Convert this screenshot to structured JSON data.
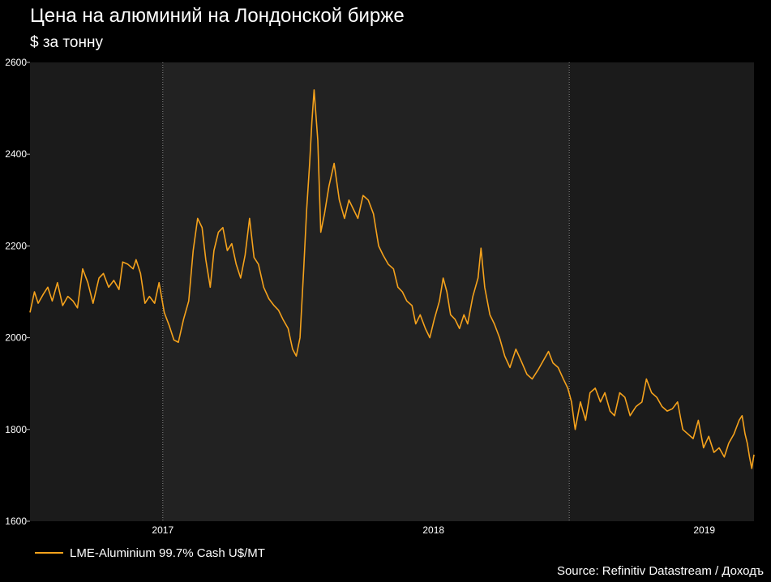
{
  "chart_data": {
    "type": "line",
    "title": "Цена на алюминий на Лондонской бирже",
    "subtitle": "$ за тонну",
    "source": "Source: Refinitiv Datastream / Доходъ",
    "ylim": [
      1600,
      2600
    ],
    "yticks": [
      "2600",
      "2400",
      "2200",
      "2000",
      "1800",
      "1600"
    ],
    "ytick_values": [
      2600,
      2400,
      2200,
      2000,
      1800,
      1600
    ],
    "xlim": [
      "2016-10-04",
      "2019-06-07"
    ],
    "xticks": [
      {
        "label": "2017",
        "date": "2017-04-01"
      },
      {
        "label": "2018",
        "date": "2018-04-01"
      },
      {
        "label": "2019",
        "date": "2019-04-01"
      }
    ],
    "period_boundaries": [
      "2017-04-01",
      "2018-10-01"
    ],
    "grid": false,
    "legend_position": "bottom-left",
    "colors": {
      "background": "#000000",
      "plot_shaded": "#1b1b1b",
      "plot_light": "#222222",
      "line": "#f5a21c",
      "text": "#ffffff"
    },
    "series": [
      {
        "name": "LME-Aluminium 99.7% Cash U$/MT",
        "color": "#f5a21c",
        "points": [
          [
            "2016-10-04",
            2055
          ],
          [
            "2016-10-10",
            2100
          ],
          [
            "2016-10-15",
            2075
          ],
          [
            "2016-10-22",
            2095
          ],
          [
            "2016-10-28",
            2110
          ],
          [
            "2016-11-03",
            2080
          ],
          [
            "2016-11-10",
            2120
          ],
          [
            "2016-11-17",
            2070
          ],
          [
            "2016-11-24",
            2090
          ],
          [
            "2016-12-01",
            2080
          ],
          [
            "2016-12-07",
            2065
          ],
          [
            "2016-12-14",
            2150
          ],
          [
            "2016-12-21",
            2120
          ],
          [
            "2016-12-28",
            2075
          ],
          [
            "2017-01-05",
            2130
          ],
          [
            "2017-01-11",
            2140
          ],
          [
            "2017-01-18",
            2110
          ],
          [
            "2017-01-25",
            2125
          ],
          [
            "2017-02-01",
            2105
          ],
          [
            "2017-02-06",
            2165
          ],
          [
            "2017-02-13",
            2160
          ],
          [
            "2017-02-20",
            2150
          ],
          [
            "2017-02-24",
            2170
          ],
          [
            "2017-03-02",
            2140
          ],
          [
            "2017-03-08",
            2075
          ],
          [
            "2017-03-14",
            2090
          ],
          [
            "2017-03-21",
            2075
          ],
          [
            "2017-03-27",
            2120
          ],
          [
            "2017-04-03",
            2055
          ],
          [
            "2017-04-10",
            2025
          ],
          [
            "2017-04-16",
            1995
          ],
          [
            "2017-04-22",
            1990
          ],
          [
            "2017-04-29",
            2040
          ],
          [
            "2017-05-06",
            2080
          ],
          [
            "2017-05-12",
            2190
          ],
          [
            "2017-05-18",
            2260
          ],
          [
            "2017-05-24",
            2240
          ],
          [
            "2017-05-29",
            2170
          ],
          [
            "2017-06-04",
            2110
          ],
          [
            "2017-06-09",
            2190
          ],
          [
            "2017-06-15",
            2230
          ],
          [
            "2017-06-21",
            2240
          ],
          [
            "2017-06-27",
            2190
          ],
          [
            "2017-07-03",
            2205
          ],
          [
            "2017-07-09",
            2160
          ],
          [
            "2017-07-15",
            2130
          ],
          [
            "2017-07-21",
            2180
          ],
          [
            "2017-07-27",
            2260
          ],
          [
            "2017-08-02",
            2175
          ],
          [
            "2017-08-08",
            2160
          ],
          [
            "2017-08-15",
            2110
          ],
          [
            "2017-08-22",
            2085
          ],
          [
            "2017-08-29",
            2070
          ],
          [
            "2017-09-04",
            2060
          ],
          [
            "2017-09-10",
            2040
          ],
          [
            "2017-09-17",
            2020
          ],
          [
            "2017-09-23",
            1975
          ],
          [
            "2017-09-28",
            1960
          ],
          [
            "2017-10-03",
            2000
          ],
          [
            "2017-10-08",
            2150
          ],
          [
            "2017-10-12",
            2280
          ],
          [
            "2017-10-16",
            2380
          ],
          [
            "2017-10-19",
            2470
          ],
          [
            "2017-10-22",
            2540
          ],
          [
            "2017-10-27",
            2430
          ],
          [
            "2017-10-31",
            2230
          ],
          [
            "2017-11-05",
            2270
          ],
          [
            "2017-11-11",
            2330
          ],
          [
            "2017-11-18",
            2380
          ],
          [
            "2017-11-25",
            2300
          ],
          [
            "2017-12-02",
            2260
          ],
          [
            "2017-12-08",
            2300
          ],
          [
            "2017-12-14",
            2280
          ],
          [
            "2017-12-20",
            2260
          ],
          [
            "2017-12-27",
            2310
          ],
          [
            "2018-01-03",
            2300
          ],
          [
            "2018-01-10",
            2270
          ],
          [
            "2018-01-17",
            2200
          ],
          [
            "2018-01-23",
            2180
          ],
          [
            "2018-01-30",
            2160
          ],
          [
            "2018-02-06",
            2150
          ],
          [
            "2018-02-12",
            2110
          ],
          [
            "2018-02-18",
            2100
          ],
          [
            "2018-02-24",
            2080
          ],
          [
            "2018-03-03",
            2070
          ],
          [
            "2018-03-08",
            2030
          ],
          [
            "2018-03-14",
            2050
          ],
          [
            "2018-03-21",
            2020
          ],
          [
            "2018-03-27",
            2000
          ],
          [
            "2018-04-02",
            2040
          ],
          [
            "2018-04-09",
            2080
          ],
          [
            "2018-04-14",
            2130
          ],
          [
            "2018-04-19",
            2100
          ],
          [
            "2018-04-24",
            2050
          ],
          [
            "2018-04-30",
            2040
          ],
          [
            "2018-05-06",
            2020
          ],
          [
            "2018-05-12",
            2050
          ],
          [
            "2018-05-17",
            2030
          ],
          [
            "2018-05-24",
            2090
          ],
          [
            "2018-05-31",
            2130
          ],
          [
            "2018-06-04",
            2195
          ],
          [
            "2018-06-09",
            2110
          ],
          [
            "2018-06-16",
            2050
          ],
          [
            "2018-06-22",
            2030
          ],
          [
            "2018-06-29",
            2000
          ],
          [
            "2018-07-06",
            1960
          ],
          [
            "2018-07-13",
            1935
          ],
          [
            "2018-07-21",
            1975
          ],
          [
            "2018-07-28",
            1950
          ],
          [
            "2018-08-05",
            1920
          ],
          [
            "2018-08-12",
            1910
          ],
          [
            "2018-08-20",
            1930
          ],
          [
            "2018-08-27",
            1950
          ],
          [
            "2018-09-03",
            1970
          ],
          [
            "2018-09-09",
            1945
          ],
          [
            "2018-09-16",
            1935
          ],
          [
            "2018-09-23",
            1910
          ],
          [
            "2018-09-29",
            1890
          ],
          [
            "2018-10-04",
            1860
          ],
          [
            "2018-10-09",
            1800
          ],
          [
            "2018-10-16",
            1860
          ],
          [
            "2018-10-23",
            1820
          ],
          [
            "2018-10-29",
            1880
          ],
          [
            "2018-11-05",
            1890
          ],
          [
            "2018-11-12",
            1860
          ],
          [
            "2018-11-18",
            1880
          ],
          [
            "2018-11-25",
            1840
          ],
          [
            "2018-12-01",
            1830
          ],
          [
            "2018-12-08",
            1880
          ],
          [
            "2018-12-15",
            1870
          ],
          [
            "2018-12-22",
            1830
          ],
          [
            "2018-12-30",
            1850
          ],
          [
            "2019-01-07",
            1860
          ],
          [
            "2019-01-13",
            1910
          ],
          [
            "2019-01-20",
            1880
          ],
          [
            "2019-01-27",
            1870
          ],
          [
            "2019-02-03",
            1850
          ],
          [
            "2019-02-10",
            1840
          ],
          [
            "2019-02-17",
            1845
          ],
          [
            "2019-02-24",
            1860
          ],
          [
            "2019-03-03",
            1800
          ],
          [
            "2019-03-10",
            1790
          ],
          [
            "2019-03-17",
            1780
          ],
          [
            "2019-03-24",
            1820
          ],
          [
            "2019-03-31",
            1760
          ],
          [
            "2019-04-07",
            1785
          ],
          [
            "2019-04-14",
            1750
          ],
          [
            "2019-04-21",
            1760
          ],
          [
            "2019-04-28",
            1740
          ],
          [
            "2019-05-04",
            1770
          ],
          [
            "2019-05-11",
            1790
          ],
          [
            "2019-05-18",
            1820
          ],
          [
            "2019-05-22",
            1830
          ],
          [
            "2019-05-26",
            1790
          ],
          [
            "2019-05-29",
            1770
          ],
          [
            "2019-06-01",
            1740
          ],
          [
            "2019-06-04",
            1715
          ],
          [
            "2019-06-07",
            1745
          ]
        ]
      }
    ]
  }
}
